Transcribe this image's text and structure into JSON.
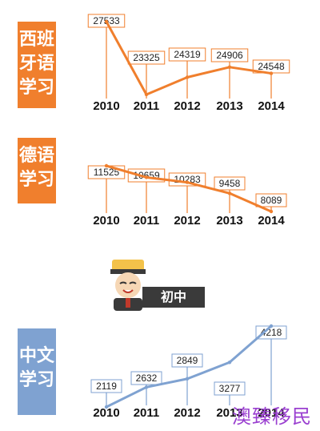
{
  "colors": {
    "orange": "#f07f2d",
    "blue": "#7fa2d1",
    "badge": "#3a3a3a",
    "watermark": "#9a3fd0"
  },
  "sections": [
    {
      "label_lines": [
        "西班",
        "牙语",
        "学习"
      ],
      "color": "orange"
    },
    {
      "label_lines": [
        "德语",
        "学习"
      ],
      "color": "orange"
    },
    {
      "label_lines": [
        "中文",
        "学习"
      ],
      "color": "blue"
    }
  ],
  "badge": {
    "text": "初中",
    "icon": "student-mascot-icon"
  },
  "watermark": "澳臻移民",
  "chart_data": [
    {
      "type": "line",
      "color": "orange",
      "categories": [
        "2010",
        "2011",
        "2012",
        "2013",
        "2014"
      ],
      "values": [
        27533,
        23325,
        24319,
        24906,
        24548
      ]
    },
    {
      "type": "line",
      "color": "orange",
      "categories": [
        "2010",
        "2011",
        "2012",
        "2013",
        "2014"
      ],
      "values": [
        11525,
        10659,
        10283,
        9458,
        8089
      ]
    },
    {
      "type": "line",
      "color": "blue",
      "categories": [
        "2010",
        "2011",
        "2012",
        "2013",
        "2014"
      ],
      "values": [
        2119,
        2632,
        2849,
        3277,
        4218
      ]
    }
  ]
}
